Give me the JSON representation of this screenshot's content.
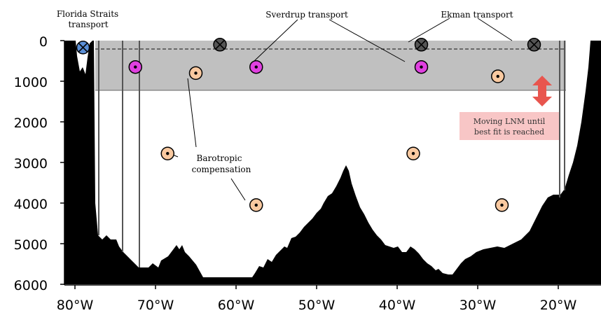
{
  "labels": {
    "florida_line1": "Florida Straits",
    "florida_line2": "transport",
    "sverdrup": "Sverdrup transport",
    "ekman": "Ekman transport",
    "barotropic_line1": "Barotropic",
    "barotropic_line2": "compensation",
    "lnm_line1": "Moving LNM until",
    "lnm_line2": "best fit is reached"
  },
  "axes": {
    "y_ticks": [
      "0",
      "1000",
      "2000",
      "3000",
      "4000",
      "5000",
      "6000"
    ],
    "x_ticks": [
      "80°W",
      "70°W",
      "60°W",
      "50°W",
      "40°W",
      "30°W",
      "20°W"
    ]
  },
  "colors": {
    "band": "#c0c0c0",
    "sverdrup_marker": "#e040e0",
    "ekman_marker": "#555555",
    "barotropic_marker": "#f9c9a0",
    "florida_marker": "#5b8fd6",
    "arrow": "#e8554e",
    "lnm_box": "#f8c6c6"
  },
  "markers": {
    "ekman": [
      [
        -62,
        100
      ],
      [
        -37,
        100
      ],
      [
        -23,
        100
      ]
    ],
    "sverdrup": [
      [
        -72.5,
        650
      ],
      [
        -57.5,
        650
      ],
      [
        -37,
        650
      ]
    ],
    "barotropic": [
      [
        -65,
        800
      ],
      [
        -27.5,
        880
      ],
      [
        -68.5,
        2780
      ],
      [
        -38,
        2780
      ],
      [
        -57.5,
        4050
      ],
      [
        -27,
        4050
      ]
    ],
    "florida": [
      [
        -79,
        170
      ]
    ]
  }
}
